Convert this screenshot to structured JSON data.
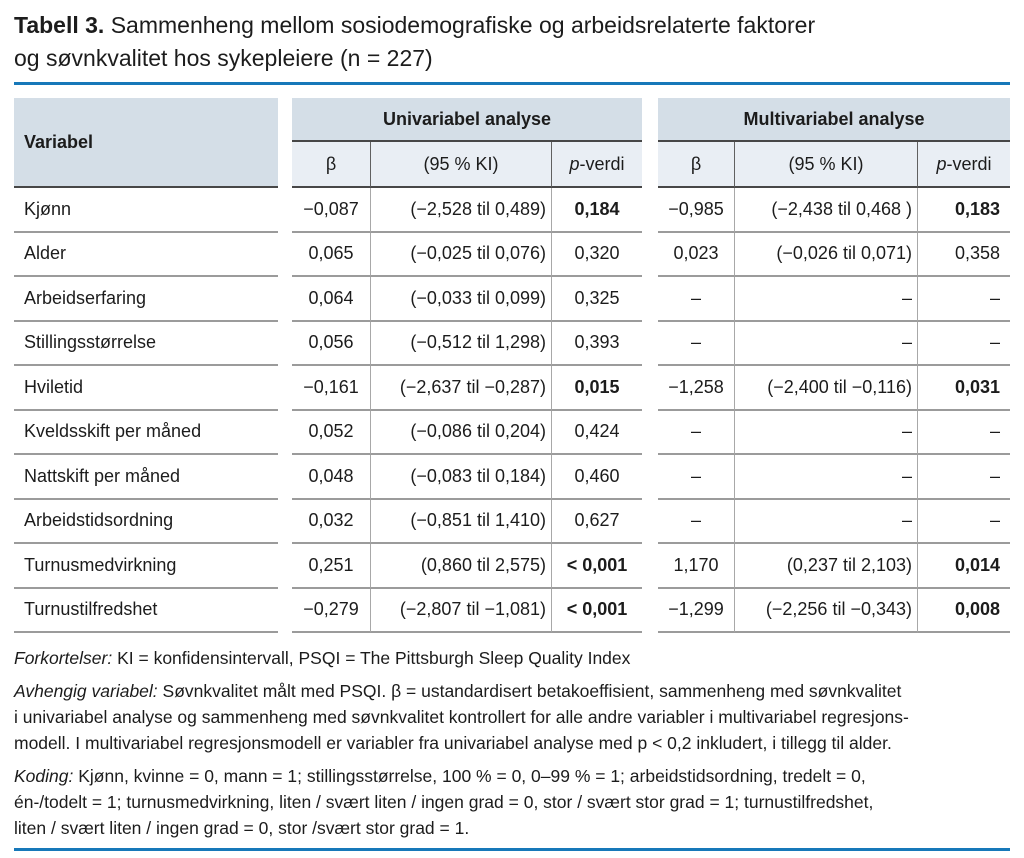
{
  "title": {
    "lead": "Tabell 3.",
    "text": "Sammenheng mellom sosiodemografiske og arbeidsrelaterte faktorer\nog søvnkvalitet hos sykepleiere (n = 227)"
  },
  "table": {
    "corner_header": "Variabel",
    "group_headers": {
      "univariate": "Univariabel analyse",
      "multivariate": "Multivariabel analyse"
    },
    "subheader": {
      "beta": "β",
      "ki": "(95 % KI)",
      "p_italic": "p",
      "p_rest": "-verdi"
    },
    "rows": [
      {
        "variabel": "Kjønn",
        "uni": {
          "beta": "−0,087",
          "ki": "(−2,528 til 0,489)",
          "p": "0,184",
          "p_bold": true
        },
        "multi": {
          "beta": "−0,985",
          "ki": "(−2,438 til 0,468 )",
          "p": "0,183",
          "p_bold": true
        }
      },
      {
        "variabel": "Alder",
        "uni": {
          "beta": "0,065",
          "ki": "(−0,025 til 0,076)",
          "p": "0,320",
          "p_bold": false
        },
        "multi": {
          "beta": "0,023",
          "ki": "(−0,026 til 0,071)",
          "p": "0,358",
          "p_bold": false
        }
      },
      {
        "variabel": "Arbeidserfaring",
        "uni": {
          "beta": "0,064",
          "ki": "(−0,033 til 0,099)",
          "p": "0,325",
          "p_bold": false
        },
        "multi": {
          "beta": "–",
          "ki": "–",
          "p": "–",
          "p_bold": false
        }
      },
      {
        "variabel": "Stillingsstørrelse",
        "uni": {
          "beta": "0,056",
          "ki": "(−0,512 til 1,298)",
          "p": "0,393",
          "p_bold": false
        },
        "multi": {
          "beta": "–",
          "ki": "–",
          "p": "–",
          "p_bold": false
        }
      },
      {
        "variabel": "Hviletid",
        "uni": {
          "beta": "−0,161",
          "ki": "(−2,637 til −0,287)",
          "p": "0,015",
          "p_bold": true
        },
        "multi": {
          "beta": "−1,258",
          "ki": "(−2,400 til −0,116)",
          "p": "0,031",
          "p_bold": true
        }
      },
      {
        "variabel": "Kveldsskift per måned",
        "uni": {
          "beta": "0,052",
          "ki": "(−0,086 til 0,204)",
          "p": "0,424",
          "p_bold": false
        },
        "multi": {
          "beta": "–",
          "ki": "–",
          "p": "–",
          "p_bold": false
        }
      },
      {
        "variabel": "Nattskift per måned",
        "uni": {
          "beta": "0,048",
          "ki": "(−0,083 til 0,184)",
          "p": "0,460",
          "p_bold": false
        },
        "multi": {
          "beta": "–",
          "ki": "–",
          "p": "–",
          "p_bold": false
        }
      },
      {
        "variabel": "Arbeidstidsordning",
        "uni": {
          "beta": "0,032",
          "ki": "(−0,851 til 1,410)",
          "p": "0,627",
          "p_bold": false
        },
        "multi": {
          "beta": "–",
          "ki": "–",
          "p": "–",
          "p_bold": false
        }
      },
      {
        "variabel": "Turnusmedvirkning",
        "uni": {
          "beta": "0,251",
          "ki": "(0,860 til 2,575)",
          "p": "< 0,001",
          "p_bold": true
        },
        "multi": {
          "beta": "1,170",
          "ki": "(0,237 til 2,103)",
          "p": "0,014",
          "p_bold": true
        }
      },
      {
        "variabel": "Turnustilfredshet",
        "uni": {
          "beta": "−0,279",
          "ki": "(−2,807 til −1,081)",
          "p": "< 0,001",
          "p_bold": true
        },
        "multi": {
          "beta": "−1,299",
          "ki": "(−2,256 til −0,343)",
          "p": "0,008",
          "p_bold": true
        }
      }
    ]
  },
  "footnotes": [
    {
      "lead": "Forkortelser:",
      "text": "KI = konfidensintervall, PSQI = The Pittsburgh Sleep Quality Index"
    },
    {
      "lead": "Avhengig variabel:",
      "text": "Søvnkvalitet målt med PSQI. β = ustandardisert betakoeffisient, sammenheng med søvnkvalitet\ni univariabel analyse og sammenheng med søvnkvalitet kontrollert for alle andre variabler i multivariabel regresjons-\nmodell. I multivariabel regresjonsmodell er variabler fra univariabel analyse med p < 0,2 inkludert, i tillegg til alder."
    },
    {
      "lead": "Koding:",
      "text": "Kjønn, kvinne = 0, mann = 1; stillingsstørrelse, 100 % = 0, 0–99 % = 1; arbeidstidsordning, tredelt = 0,\nén-/todelt = 1; turnusmedvirkning, liten / svært liten / ingen grad = 0, stor / svært stor grad = 1; turnustilfredshet,\nliten / svært liten / ingen grad = 0, stor /svært stor grad = 1."
    }
  ],
  "colors": {
    "accent_rule": "#1778b9",
    "header_bg": "#d4dee7",
    "subheader_bg": "#e9eef4"
  }
}
